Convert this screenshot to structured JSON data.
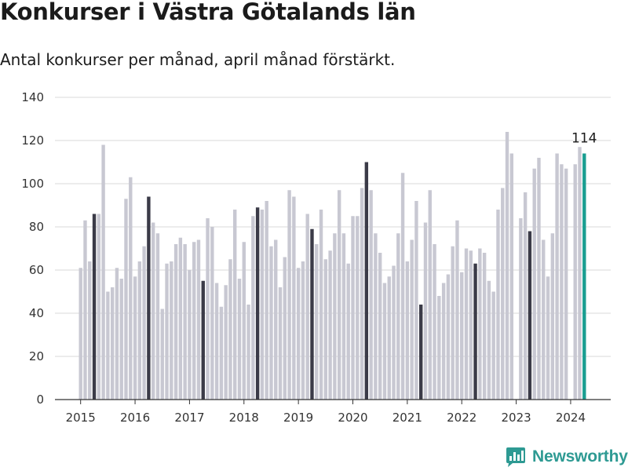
{
  "title": "Konkurser i Västra Götalands län",
  "subtitle": "Antal konkurser per månad, april månad förstärkt.",
  "logo": {
    "text": "Newsworthy",
    "icon": "newsworthy-logo-icon",
    "color": "#2e9a93"
  },
  "chart_data": {
    "type": "bar",
    "title": "Konkurser i Västra Götalands län",
    "subtitle": "Antal konkurser per månad, april månad förstärkt.",
    "xlabel": "",
    "ylabel": "",
    "ylim": [
      0,
      140
    ],
    "yticks": [
      0,
      20,
      40,
      60,
      80,
      100,
      120,
      140
    ],
    "xtick_labels": [
      "2015",
      "2016",
      "2017",
      "2018",
      "2019",
      "2020",
      "2021",
      "2022",
      "2023",
      "2024"
    ],
    "grid": true,
    "legend": "none",
    "colors": {
      "regular": "#c8c8d2",
      "april": "#3b3b48",
      "latest": "#1a9e91",
      "grid": "#d9d9d9",
      "axis": "#333333"
    },
    "highlight": "april",
    "start_month": "2015-01",
    "end_month": "2024-04",
    "values": [
      61,
      83,
      64,
      86,
      86,
      118,
      50,
      52,
      61,
      56,
      93,
      103,
      57,
      64,
      71,
      94,
      82,
      77,
      42,
      63,
      64,
      72,
      75,
      72,
      60,
      73,
      74,
      55,
      84,
      80,
      54,
      43,
      53,
      65,
      88,
      56,
      73,
      44,
      85,
      89,
      88,
      92,
      71,
      74,
      52,
      66,
      97,
      94,
      61,
      64,
      86,
      79,
      72,
      88,
      65,
      69,
      77,
      97,
      77,
      63,
      85,
      85,
      98,
      110,
      97,
      77,
      68,
      54,
      57,
      62,
      77,
      105,
      64,
      74,
      92,
      44,
      82,
      97,
      72,
      48,
      54,
      58,
      71,
      83,
      59,
      70,
      69,
      63,
      70,
      68,
      55,
      50,
      88,
      98,
      124,
      114,
      0,
      84,
      96,
      78,
      107,
      112,
      74,
      57,
      77,
      114,
      109,
      107,
      0,
      109,
      117,
      114
    ],
    "annotations": [
      {
        "label": "114",
        "month": "2024-04"
      }
    ]
  }
}
